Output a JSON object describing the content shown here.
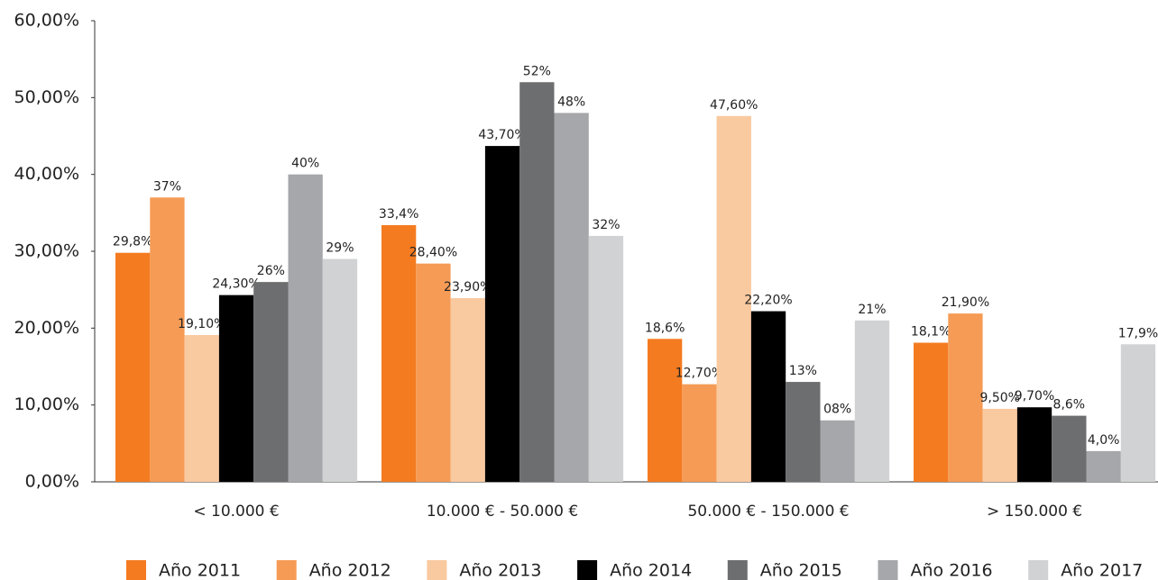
{
  "chart_data": {
    "type": "bar",
    "categories": [
      "< 10.000 €",
      "10.000 € - 50.000 €",
      "50.000 € - 150.000 €",
      "> 150.000 €"
    ],
    "series": [
      {
        "name": "Año 2011",
        "color": "#f47b20",
        "values": [
          29.8,
          33.4,
          18.6,
          18.1
        ],
        "value_labels": [
          "29,8%",
          "33,4%",
          "18,6%",
          "18,1%"
        ]
      },
      {
        "name": "Año 2012",
        "color": "#f59b55",
        "values": [
          37,
          28.4,
          12.7,
          21.9
        ],
        "value_labels": [
          "37%",
          "28,40%",
          "12,70%",
          "21,90%"
        ]
      },
      {
        "name": "Año 2013",
        "color": "#f9c9a0",
        "values": [
          19.1,
          23.9,
          47.6,
          9.5
        ],
        "value_labels": [
          "19,10%",
          "23,90%",
          "47,60%",
          "9,50%"
        ]
      },
      {
        "name": "Año 2014",
        "color": "#000000",
        "values": [
          24.3,
          43.7,
          22.2,
          9.7
        ],
        "value_labels": [
          "24,30%",
          "43,70%",
          "22,20%",
          "9,70%"
        ]
      },
      {
        "name": "Año 2015",
        "color": "#6d6e70",
        "values": [
          26,
          52,
          13,
          8.6
        ],
        "value_labels": [
          "26%",
          "52%",
          "13%",
          "8,6%"
        ]
      },
      {
        "name": "Año 2016",
        "color": "#a6a7aa",
        "values": [
          40,
          48,
          8,
          4.0
        ],
        "value_labels": [
          "40%",
          "48%",
          "08%",
          "4,0%"
        ]
      },
      {
        "name": "Año 2017",
        "color": "#d1d2d4",
        "values": [
          29,
          32,
          21,
          17.9
        ],
        "value_labels": [
          "29%",
          "32%",
          "21%",
          "17,9%"
        ]
      }
    ],
    "ylim": [
      0,
      60
    ],
    "yticks": [
      {
        "value": 0,
        "label": "0,00%"
      },
      {
        "value": 10,
        "label": "10,00%"
      },
      {
        "value": 20,
        "label": "20,00%"
      },
      {
        "value": 30,
        "label": "30,00%"
      },
      {
        "value": 40,
        "label": "40,00%"
      },
      {
        "value": 50,
        "label": "50,00%"
      },
      {
        "value": 60,
        "label": "60,00%"
      }
    ],
    "legend": "bottom"
  }
}
